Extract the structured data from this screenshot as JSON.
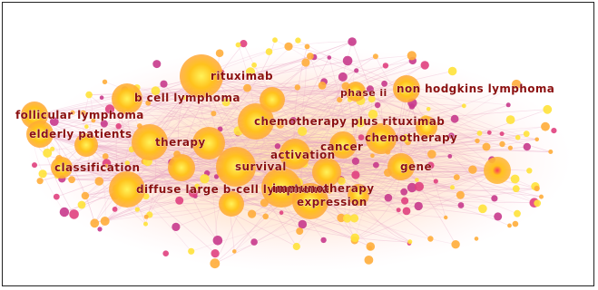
{
  "figure": {
    "colors": {
      "hub_core": "#fff35a",
      "hub_mid": "#ffc21c",
      "hub_edge": "#ff9a3c",
      "minor_yellow": "#ffe23a",
      "minor_orange": "#ffad3a",
      "minor_pink": "#e0407e",
      "minor_magenta": "#c83a8c",
      "link": "#e8a4c4",
      "label": "#8b1010"
    }
  },
  "keywords": [
    {
      "id": "rituximab",
      "label": "rituximab"
    },
    {
      "id": "b-cell-lymphoma",
      "label": "b cell lymphoma"
    },
    {
      "id": "phase-ii",
      "label": "phase ii"
    },
    {
      "id": "non-hodgkins-lymphoma",
      "label": "non hodgkins lymphoma"
    },
    {
      "id": "follicular-lymphoma",
      "label": "follicular lymphoma"
    },
    {
      "id": "chemotherapy-plus-rituximab",
      "label": "chemotherapy plus rituximab"
    },
    {
      "id": "elderly-patients",
      "label": "elderly patients"
    },
    {
      "id": "therapy",
      "label": "therapy"
    },
    {
      "id": "chemotherapy",
      "label": "chemotherapy"
    },
    {
      "id": "cancer",
      "label": "cancer"
    },
    {
      "id": "activation",
      "label": "activation"
    },
    {
      "id": "classification",
      "label": "classification"
    },
    {
      "id": "survival",
      "label": "survival"
    },
    {
      "id": "gene",
      "label": "gene"
    },
    {
      "id": "diffuse-large-b-cell-lymphoma",
      "label": "diffuse large b-cell lymphoma"
    },
    {
      "id": "immunotherapy",
      "label": "immunotherapy"
    },
    {
      "id": "expression",
      "label": "expression"
    }
  ]
}
